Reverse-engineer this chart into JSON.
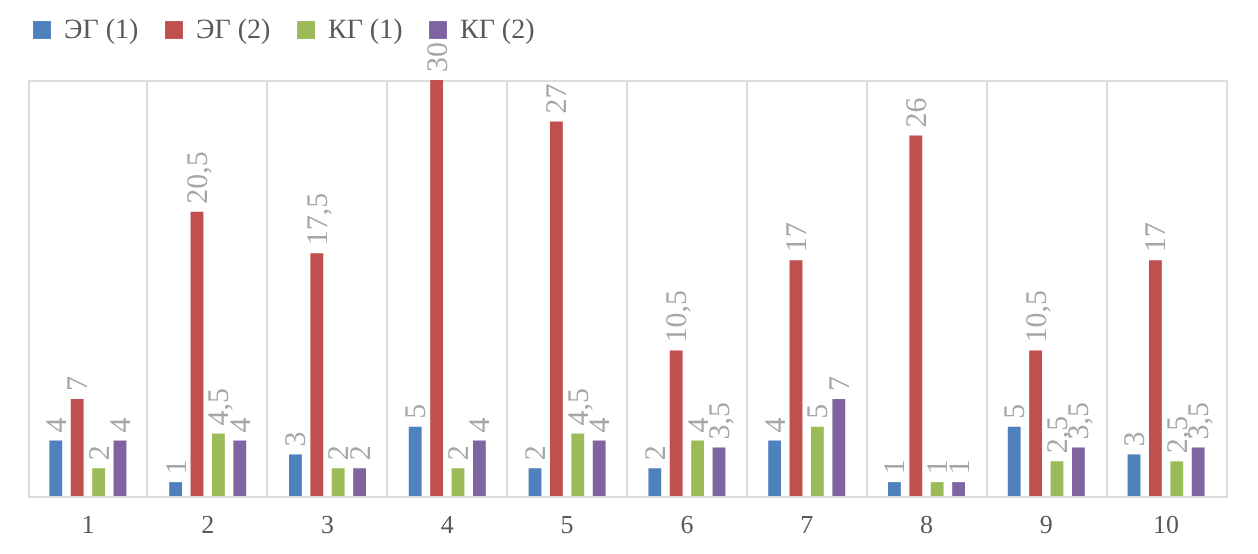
{
  "chart_data": {
    "type": "bar",
    "categories": [
      "1",
      "2",
      "3",
      "4",
      "5",
      "6",
      "7",
      "8",
      "9",
      "10"
    ],
    "series": [
      {
        "name": "ЭГ (1)",
        "color": "#4f81bd",
        "values": [
          4,
          1,
          3,
          5,
          2,
          2,
          4,
          1,
          5,
          3
        ],
        "value_labels": [
          "4",
          "1",
          "3",
          "5",
          "2",
          "2",
          "4",
          "1",
          "5",
          "3"
        ]
      },
      {
        "name": "ЭГ (2)",
        "color": "#c0504d",
        "values": [
          7,
          20.5,
          17.5,
          30,
          27,
          10.5,
          17,
          26,
          10.5,
          17
        ],
        "value_labels": [
          "7",
          "20,5",
          "17,5",
          "30",
          "27",
          "10,5",
          "17",
          "26",
          "10,5",
          "17"
        ]
      },
      {
        "name": "КГ (1)",
        "color": "#9bbb59",
        "values": [
          2,
          4.5,
          2,
          2,
          4.5,
          4,
          5,
          1,
          2.5,
          2.5
        ],
        "value_labels": [
          "2",
          "4,5",
          "2",
          "2",
          "4,5",
          "4",
          "5",
          "1",
          "2,5",
          "2,5"
        ]
      },
      {
        "name": "КГ (2)",
        "color": "#8064a2",
        "values": [
          4,
          4,
          2,
          4,
          4,
          3.5,
          7,
          1,
          3.5,
          3.5
        ],
        "value_labels": [
          "4",
          "4",
          "2",
          "4",
          "4",
          "3,5",
          "7",
          "1",
          "3,5",
          "3,5"
        ]
      }
    ],
    "legend": "top",
    "grid": "x"
  }
}
